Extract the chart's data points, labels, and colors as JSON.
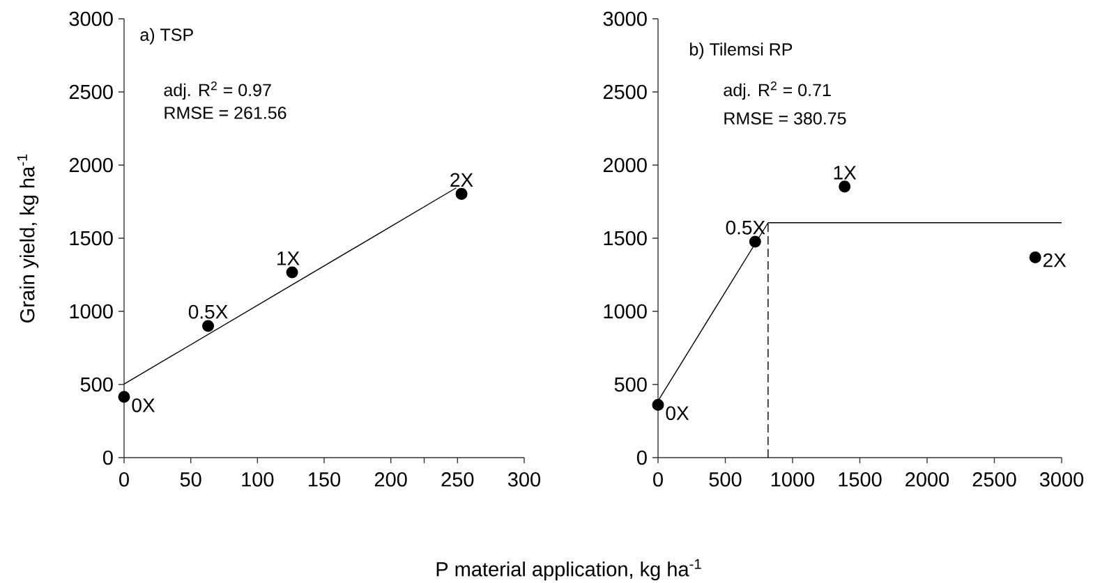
{
  "chart_data": [
    {
      "type": "scatter",
      "ylabel": "Grain yield, kg ha$^{-1}$",
      "xlabel": "P material application, kg ha$^{-1}$",
      "xlim": [
        0,
        300
      ],
      "xticks": [
        0,
        50,
        100,
        150,
        200,
        {
          "value": 225,
          "label": null
        },
        250,
        300
      ],
      "ylim": [
        0,
        3000
      ],
      "yticks": [
        0,
        500,
        1000,
        1500,
        2000,
        2500,
        3000
      ],
      "series": [
        {
          "color": "#000000",
          "marker": "circle",
          "x": [
            0,
            63,
            126,
            253
          ],
          "values": [
            415,
            900,
            1267,
            1803
          ]
        },
        {
          "type": "line",
          "color": "#000000",
          "marker": "none",
          "line_style": "solid",
          "x": [
            0,
            249
          ],
          "values": [
            503,
            1844
          ]
        }
      ],
      "annotations": [
        "a) TSP",
        "adj. R$^{2}$ = 0.97",
        "RMSE = 261.56",
        {
          "text": "0X",
          "x": 0,
          "y": 415
        },
        {
          "text": "0.5X",
          "x": 63,
          "y": 900
        },
        {
          "text": "1X",
          "x": 126,
          "y": 1267
        },
        {
          "text": "2X",
          "x": 253,
          "y": 1803
        }
      ]
    },
    {
      "type": "scatter",
      "xlim": [
        0,
        3000
      ],
      "xticks": [
        0,
        500,
        1000,
        1500,
        2000,
        2500,
        3000
      ],
      "ylim": [
        0,
        3000
      ],
      "yticks": [
        0,
        500,
        1000,
        1500,
        2000,
        2500,
        3000
      ],
      "series": [
        {
          "color": "#000000",
          "marker": "circle",
          "x": [
            0,
            722,
            1387,
            2804
          ],
          "values": [
            361,
            1476,
            1853,
            1369
          ]
        },
        {
          "type": "line",
          "color": "#000000",
          "marker": "none",
          "line_style": "solid",
          "x": [
            0,
            818,
            3000
          ],
          "values": [
            388,
            1606,
            1606
          ]
        },
        {
          "type": "line",
          "color": "#000000",
          "marker": "none",
          "line_style": "dashed",
          "x": [
            818,
            818
          ],
          "values": [
            0,
            1606
          ]
        }
      ],
      "annotations": [
        "b) Tilemsi RP",
        "adj. R$^{2}$ = 0.71",
        "RMSE = 380.75",
        {
          "text": "0X",
          "x": 0,
          "y": 361
        },
        {
          "text": "0.5X",
          "x": 722,
          "y": 1476
        },
        {
          "text": "1X",
          "x": 1387,
          "y": 1853
        },
        {
          "text": "2X",
          "x": 2804,
          "y": 1369
        }
      ]
    }
  ]
}
